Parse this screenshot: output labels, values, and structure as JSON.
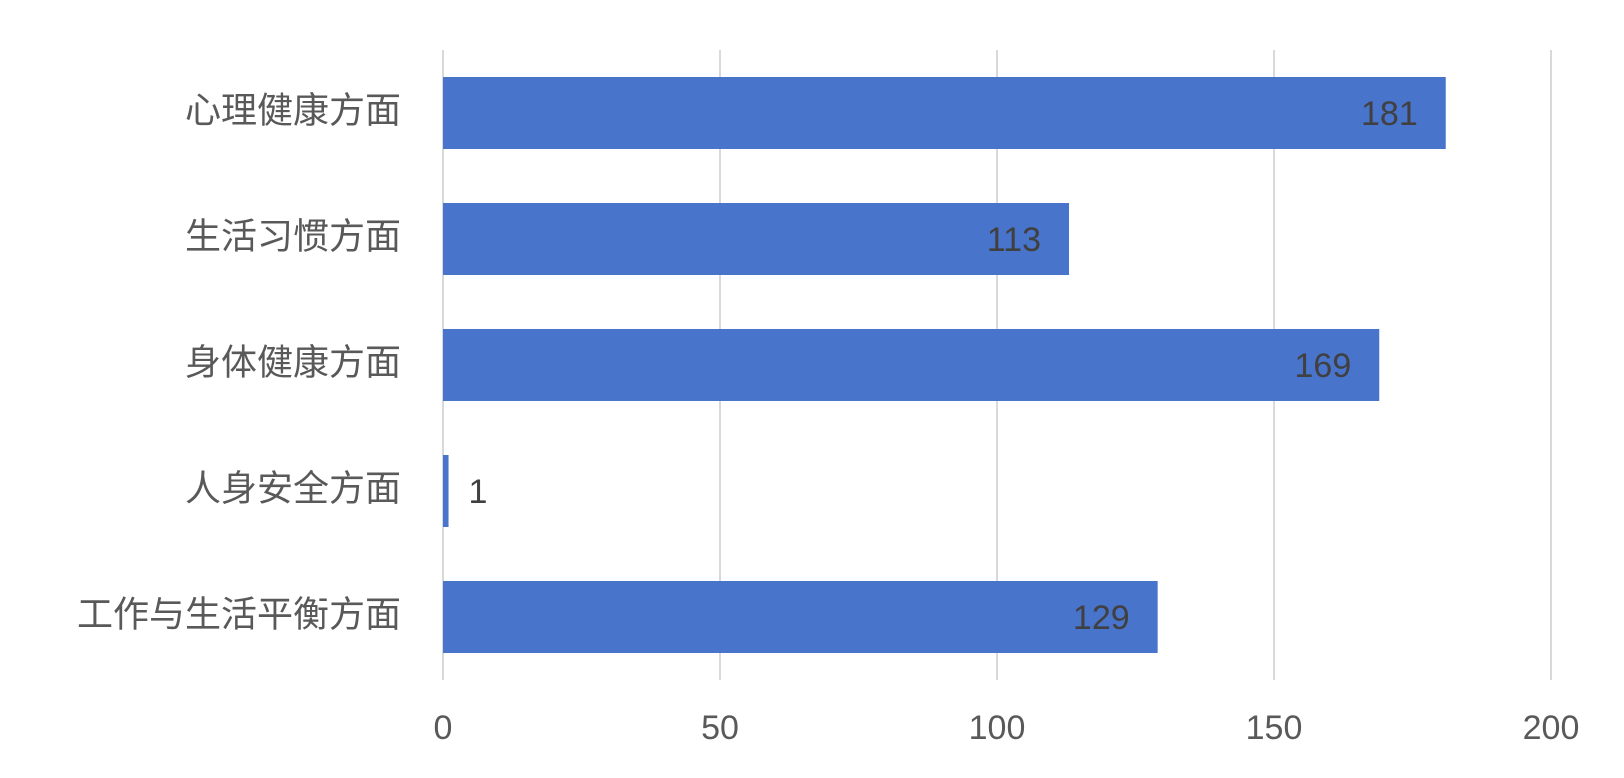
{
  "chart_data": {
    "type": "bar",
    "orientation": "horizontal",
    "categories": [
      "心理健康方面",
      "生活习惯方面",
      "身体健康方面",
      "人身安全方面",
      "工作与生活平衡方面"
    ],
    "values": [
      181,
      113,
      169,
      1,
      129
    ],
    "color": "#4874cb",
    "xlim": [
      0,
      200
    ],
    "xticks": [
      0,
      50,
      100,
      150,
      200
    ],
    "grid": true
  }
}
